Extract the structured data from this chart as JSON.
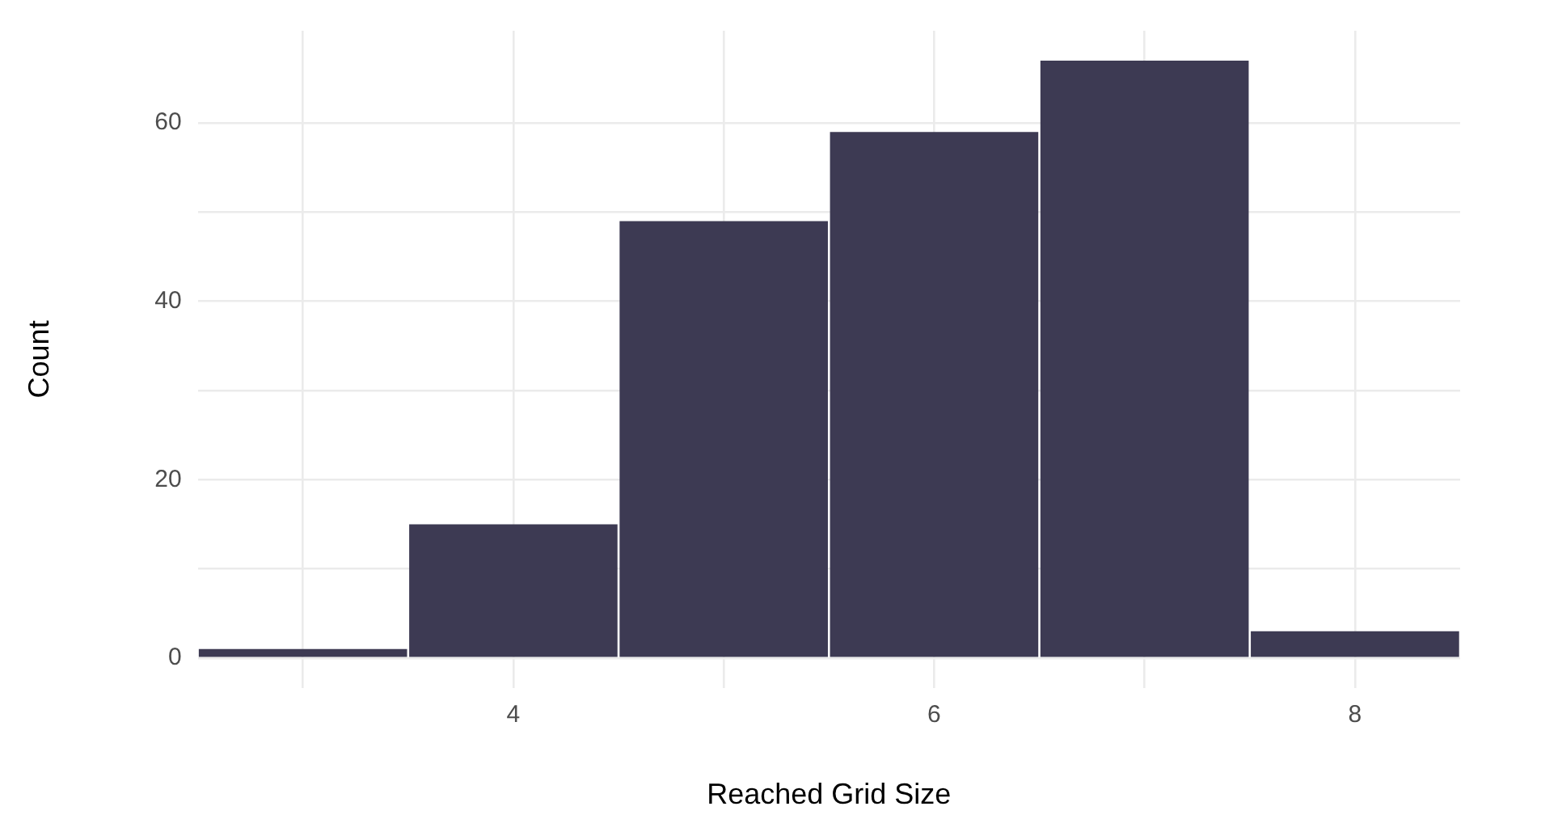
{
  "chart_data": {
    "type": "histogram",
    "xlabel": "Reached Grid Size",
    "ylabel": "Count",
    "bins": [
      2.5,
      3.5,
      4.5,
      5.5,
      6.5,
      7.5,
      8.5
    ],
    "values": [
      1,
      15,
      49,
      59,
      67,
      3
    ],
    "color": "#3d3a53",
    "xlim": [
      2.5,
      8.5
    ],
    "xticks": [
      {
        "value": 3,
        "label": null
      },
      4,
      {
        "value": 5,
        "label": null
      },
      6,
      {
        "value": 7,
        "label": null
      },
      8
    ],
    "ylim": [
      -3.35,
      70.35
    ],
    "yticks": [
      0,
      {
        "value": 10,
        "label": null
      },
      20,
      {
        "value": 30,
        "label": null
      },
      40,
      {
        "value": 50,
        "label": null
      },
      60
    ],
    "grid": true
  }
}
